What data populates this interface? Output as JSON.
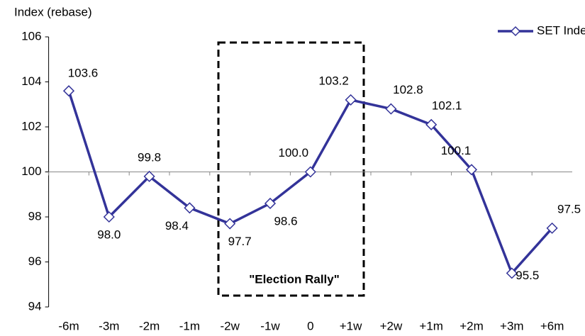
{
  "chart_data": {
    "type": "line",
    "y_label": "Index (rebase)",
    "categories": [
      "-6m",
      "-3m",
      "-2m",
      "-1m",
      "-2w",
      "-1w",
      "0",
      "+1w",
      "+2w",
      "+1m",
      "+2m",
      "+3m",
      "+6m"
    ],
    "series": [
      {
        "name": "SET Index",
        "color": "#333399",
        "values": [
          103.6,
          98.0,
          99.8,
          98.4,
          97.7,
          98.6,
          100.0,
          103.2,
          102.8,
          102.1,
          100.1,
          95.5,
          97.5
        ],
        "value_labels": [
          "103.6",
          "98.0",
          "99.8",
          "98.4",
          "97.7",
          "98.6",
          "100.0",
          "103.2",
          "102.8",
          "102.1",
          "100.1",
          "95.5",
          "97.5"
        ]
      }
    ],
    "ylim": [
      94,
      106
    ],
    "yticks": [
      94,
      96,
      98,
      100,
      102,
      104,
      106
    ],
    "x_axis_crosses": 100,
    "annotation": "\"Election Rally\"",
    "legend": "top-right"
  }
}
